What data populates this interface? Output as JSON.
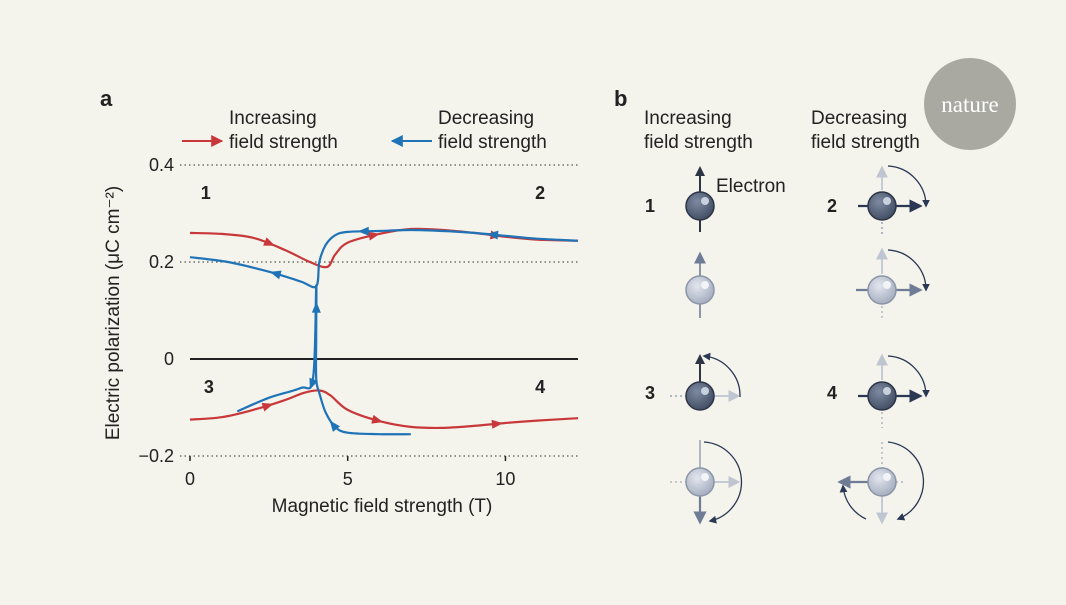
{
  "panel_a": {
    "letter": "a",
    "legend": {
      "increasing": [
        "Increasing",
        "field strength"
      ],
      "decreasing": [
        "Decreasing",
        "field strength"
      ]
    },
    "state_labels": [
      "1",
      "2",
      "3",
      "4"
    ]
  },
  "panel_b": {
    "letter": "b",
    "col_increasing": [
      "Increasing",
      "field strength"
    ],
    "col_decreasing": [
      "Decreasing",
      "field strength"
    ],
    "electron_label": "Electron",
    "state_labels": [
      "1",
      "2",
      "3",
      "4"
    ]
  },
  "logo": {
    "text": "nature"
  },
  "colors": {
    "increasing": "#c8383a",
    "decreasing": "#1f73b7",
    "electron_dark": "#4c5a70",
    "electron_light": "#aeb6c6"
  },
  "chart_data": {
    "type": "line",
    "xlabel": "Magnetic field strength (T)",
    "ylabel": "Electric polarization (μC cm⁻²)",
    "xlim": [
      0,
      12.3
    ],
    "ylim": [
      -0.2,
      0.4
    ],
    "x_ticks": [
      0,
      5,
      10
    ],
    "y_ticks": [
      {
        "value": 0.4,
        "label": "0.4"
      },
      {
        "value": 0.2,
        "label": "0.2"
      },
      {
        "value": 0,
        "label": "0"
      },
      {
        "value": -0.2,
        "label": "−0.2"
      }
    ],
    "grid": "dotted horizontal lines at 0.4, 0.2, −0.2",
    "series": [
      {
        "name": "Increasing field strength",
        "color": "#c8383a",
        "segment": "upper",
        "points": [
          [
            0,
            0.26
          ],
          [
            1,
            0.258
          ],
          [
            2,
            0.25
          ],
          [
            3,
            0.225
          ],
          [
            3.8,
            0.2
          ],
          [
            4.35,
            0.19
          ],
          [
            4.6,
            0.215
          ],
          [
            5,
            0.24
          ],
          [
            6,
            0.258
          ],
          [
            7,
            0.268
          ],
          [
            8,
            0.266
          ],
          [
            9,
            0.26
          ],
          [
            10,
            0.252
          ],
          [
            11,
            0.246
          ],
          [
            12.3,
            0.244
          ]
        ]
      },
      {
        "name": "Increasing field strength",
        "color": "#c8383a",
        "segment": "lower",
        "points": [
          [
            0,
            -0.125
          ],
          [
            1,
            -0.12
          ],
          [
            2,
            -0.105
          ],
          [
            3,
            -0.085
          ],
          [
            3.6,
            -0.07
          ],
          [
            4.1,
            -0.065
          ],
          [
            4.45,
            -0.075
          ],
          [
            5,
            -0.105
          ],
          [
            6,
            -0.128
          ],
          [
            7,
            -0.14
          ],
          [
            8,
            -0.142
          ],
          [
            9,
            -0.138
          ],
          [
            10,
            -0.132
          ],
          [
            11,
            -0.127
          ],
          [
            12.3,
            -0.122
          ]
        ]
      },
      {
        "name": "Decreasing field strength",
        "color": "#1f73b7",
        "segment": "upper",
        "points": [
          [
            12.3,
            0.244
          ],
          [
            11,
            0.248
          ],
          [
            10,
            0.254
          ],
          [
            9,
            0.26
          ],
          [
            8,
            0.264
          ],
          [
            7,
            0.266
          ],
          [
            6,
            0.264
          ],
          [
            5,
            0.262
          ],
          [
            4.6,
            0.255
          ],
          [
            4.3,
            0.235
          ],
          [
            4.1,
            0.2
          ],
          [
            4,
            0.15
          ],
          [
            3.5,
            0.16
          ],
          [
            2.5,
            0.18
          ],
          [
            1.2,
            0.2
          ],
          [
            0,
            0.21
          ]
        ]
      },
      {
        "name": "Decreasing field strength",
        "color": "#1f73b7",
        "segment": "lower",
        "points": [
          [
            7,
            -0.155
          ],
          [
            6,
            -0.155
          ],
          [
            5,
            -0.152
          ],
          [
            4.6,
            -0.14
          ],
          [
            4.3,
            -0.11
          ],
          [
            4.1,
            -0.07
          ],
          [
            4,
            -0.04
          ],
          [
            4,
            0.05
          ],
          [
            4,
            0.15
          ],
          [
            3.9,
            -0.04
          ],
          [
            3.5,
            -0.06
          ],
          [
            2.5,
            -0.08
          ],
          [
            1.5,
            -0.108
          ]
        ]
      }
    ],
    "annotations": [
      {
        "text": "1",
        "x": 0.5,
        "y": 0.33
      },
      {
        "text": "2",
        "x": 11.1,
        "y": 0.33
      },
      {
        "text": "3",
        "x": 0.6,
        "y": -0.07
      },
      {
        "text": "4",
        "x": 11.1,
        "y": -0.07
      }
    ]
  }
}
